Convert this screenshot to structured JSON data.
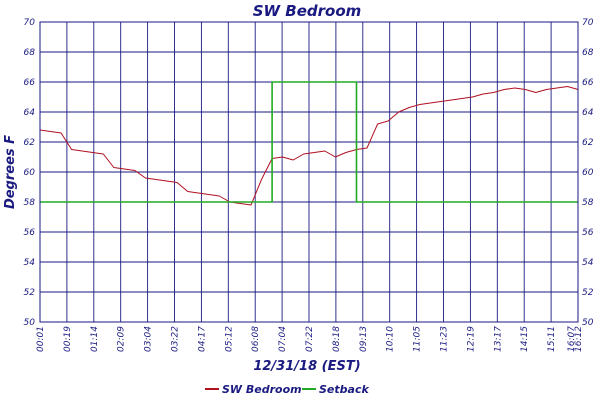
{
  "chart_data": {
    "type": "line",
    "title": "SW Bedroom",
    "xlabel": "12/31/18 (EST)",
    "ylabel": "Degrees F",
    "ylim": [
      50,
      70
    ],
    "yticks": [
      "50",
      "52",
      "54",
      "56",
      "58",
      "60",
      "62",
      "64",
      "66",
      "68",
      "70"
    ],
    "xticks": [
      "00:01",
      "00:19",
      "01:14",
      "02:09",
      "03:04",
      "03:22",
      "04:17",
      "05:12",
      "06:08",
      "07:04",
      "07:22",
      "08:18",
      "09:13",
      "10:10",
      "11:05",
      "11:23",
      "12:19",
      "13:17",
      "14:15",
      "15:11",
      "16:07",
      "16:12"
    ],
    "grid": true,
    "legend_position": "bottom",
    "colors": {
      "axis_text": "#1a1a80",
      "grid": "#1a1a80",
      "sw_bedroom": "#b01020",
      "setback": "#22aa22"
    },
    "series": [
      {
        "name": "SW Bedroom",
        "values": [
          62.8,
          62.7,
          62.6,
          61.5,
          61.4,
          61.3,
          61.2,
          60.3,
          60.2,
          60.1,
          59.6,
          59.5,
          59.4,
          59.3,
          58.7,
          58.6,
          58.5,
          58.4,
          58.0,
          57.9,
          57.8,
          59.5,
          60.9,
          61.0,
          60.8,
          61.2,
          61.3,
          61.4,
          61.0,
          61.3,
          61.5,
          61.6,
          63.2,
          63.4,
          64.0,
          64.3,
          64.5,
          64.6,
          64.7,
          64.8,
          64.9,
          65.0,
          65.2,
          65.3,
          65.5,
          65.6,
          65.5,
          65.3,
          65.5,
          65.6,
          65.7,
          65.5
        ]
      },
      {
        "name": "Setback",
        "values": [
          58,
          58,
          58,
          58,
          58,
          58,
          58,
          58,
          58,
          58,
          58,
          58,
          58,
          58,
          58,
          58,
          58,
          58,
          58,
          58,
          58,
          58,
          66,
          66,
          66,
          66,
          66,
          66,
          66,
          66,
          58,
          58,
          58,
          58,
          58,
          58,
          58,
          58,
          58,
          58,
          58,
          58,
          58,
          58,
          58,
          58,
          58,
          58,
          58,
          58,
          58,
          58
        ]
      }
    ]
  }
}
